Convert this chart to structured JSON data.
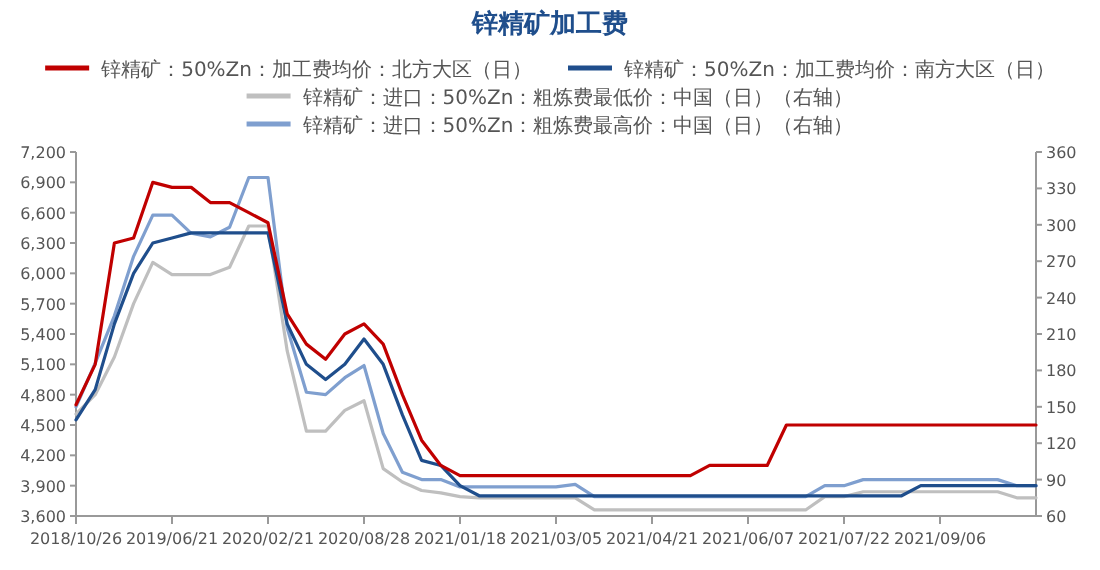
{
  "chart_data": {
    "type": "line",
    "title": "锌精矿加工费",
    "legend": "top",
    "categories": [
      "2018/10/26",
      null,
      null,
      null,
      null,
      "2019/06/21",
      null,
      null,
      null,
      null,
      "2020/02/21",
      null,
      null,
      null,
      null,
      "2020/08/28",
      null,
      null,
      null,
      null,
      "2021/01/18",
      null,
      null,
      null,
      null,
      "2021/03/05",
      null,
      null,
      null,
      null,
      "2021/04/21",
      null,
      null,
      null,
      null,
      "2021/06/07",
      null,
      null,
      null,
      null,
      "2021/07/22",
      null,
      null,
      null,
      null,
      "2021/09/06",
      null,
      null,
      null,
      null,
      null
    ],
    "series": [
      {
        "name": "锌精矿：50%Zn：加工费均价：北方大区（日）",
        "color": "#c00000",
        "values": [
          4700,
          5100,
          6300,
          6350,
          6900,
          6850,
          6850,
          6700,
          6700,
          6600,
          6500,
          5600,
          5300,
          5150,
          5400,
          5500,
          5300,
          4800,
          4350,
          4100,
          4000,
          4000,
          4000,
          4000,
          4000,
          4000,
          4000,
          4000,
          4000,
          4000,
          4000,
          4000,
          4000,
          4100,
          4100,
          4100,
          4100,
          4500,
          4500,
          4500,
          4500,
          4500,
          4500,
          4500,
          4500,
          4500,
          4500,
          4500,
          4500,
          4500,
          4500
        ]
      },
      {
        "name": "锌精矿：50%Zn：加工费均价：南方大区（日）",
        "color": "#1f4e8c",
        "values": [
          4550,
          4850,
          5500,
          6000,
          6300,
          6350,
          6400,
          6400,
          6400,
          6400,
          6400,
          5500,
          5100,
          4950,
          5100,
          5350,
          5100,
          4600,
          4150,
          4100,
          3900,
          3800,
          3800,
          3800,
          3800,
          3800,
          3800,
          3800,
          3800,
          3800,
          3800,
          3800,
          3800,
          3800,
          3800,
          3800,
          3800,
          3800,
          3800,
          3800,
          3800,
          3800,
          3800,
          3800,
          3900,
          3900,
          3900,
          3900,
          3900,
          3900,
          3900
        ]
      },
      {
        "name": "锌精矿：进口：50%Zn：粗炼费最低价：中国（日）（右轴）",
        "color": "#bfbfbf",
        "axis": "y2",
        "values": [
          144,
          160,
          191,
          235,
          269,
          259,
          259,
          259,
          265,
          299,
          299,
          196,
          130,
          130,
          147,
          155,
          99,
          88,
          81,
          79,
          76,
          75,
          75,
          75,
          75,
          75,
          75,
          65,
          65,
          65,
          65,
          65,
          65,
          65,
          65,
          65,
          65,
          65,
          65,
          76,
          76,
          80,
          80,
          80,
          80,
          80,
          80,
          80,
          80,
          75,
          75
        ]
      },
      {
        "name": "锌精矿：进口：50%Zn：粗炼费最高价：中国（日）（右轴）",
        "color": "#7f9fcf",
        "axis": "y2",
        "values": [
          150,
          186,
          225,
          274,
          308,
          308,
          293,
          290,
          298,
          339,
          339,
          215,
          162,
          160,
          174,
          184,
          128,
          96,
          90,
          90,
          84,
          84,
          84,
          84,
          84,
          84,
          86,
          76,
          76,
          76,
          76,
          76,
          76,
          76,
          76,
          76,
          76,
          76,
          76,
          85,
          85,
          90,
          90,
          90,
          90,
          90,
          90,
          90,
          90,
          85,
          85
        ]
      }
    ],
    "ylim": [
      3600,
      7200
    ],
    "yticks": [
      {
        "value": 3600,
        "label": "3,600"
      },
      {
        "value": 3900,
        "label": "3,900"
      },
      {
        "value": 4200,
        "label": "4,200"
      },
      {
        "value": 4500,
        "label": "4,500"
      },
      {
        "value": 4800,
        "label": "4,800"
      },
      {
        "value": 5100,
        "label": "5,100"
      },
      {
        "value": 5400,
        "label": "5,400"
      },
      {
        "value": 5700,
        "label": "5,700"
      },
      {
        "value": 6000,
        "label": "6,000"
      },
      {
        "value": 6300,
        "label": "6,300"
      },
      {
        "value": 6600,
        "label": "6,600"
      },
      {
        "value": 6900,
        "label": "6,900"
      },
      {
        "value": 7200,
        "label": "7,200"
      }
    ],
    "y2lim": [
      60,
      360
    ],
    "y2ticks": [
      60,
      90,
      120,
      150,
      180,
      210,
      240,
      270,
      300,
      330,
      360
    ]
  }
}
